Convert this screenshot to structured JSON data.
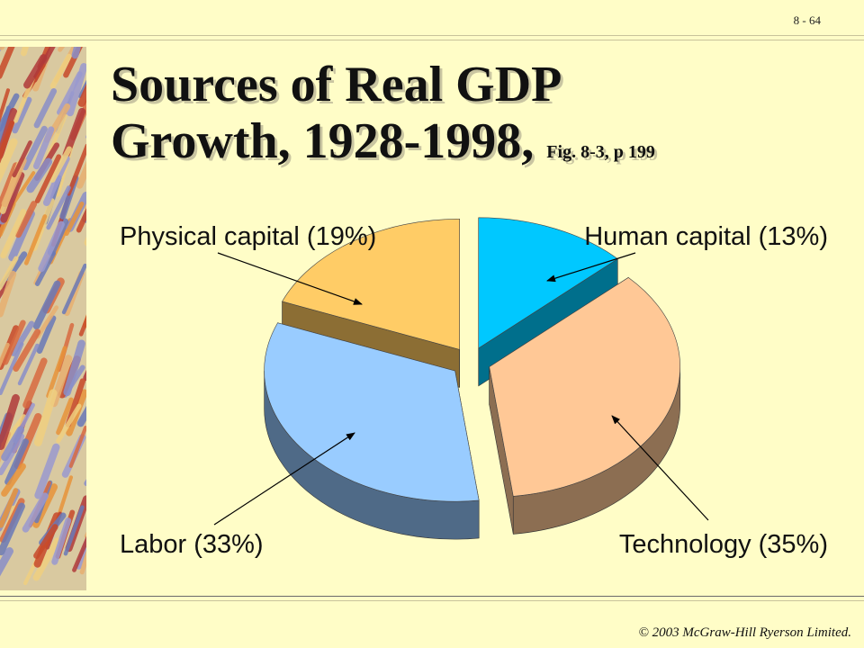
{
  "slide": {
    "page_number": "8 - 64",
    "title_line1": "Sources of Real GDP",
    "title_line2": "Growth, 1928-1998,",
    "figure_ref": "Fig. 8-3, p 199",
    "footer": "© 2003 McGraw-Hill Ryerson Limited."
  },
  "chart_data": {
    "type": "pie",
    "style": "3d-exploded",
    "slices": [
      {
        "label": "Human capital (13%)",
        "value": 13,
        "color": "#00c8ff",
        "side_color": "#006f8c"
      },
      {
        "label": "Technology (35%)",
        "value": 35,
        "color": "#ffc896",
        "side_color": "#8c6e52"
      },
      {
        "label": "Labor (33%)",
        "value": 33,
        "color": "#99ccff",
        "side_color": "#4f6a87"
      },
      {
        "label": "Physical capital (19%)",
        "value": 19,
        "color": "#ffcc66",
        "side_color": "#8c6e34"
      }
    ]
  }
}
